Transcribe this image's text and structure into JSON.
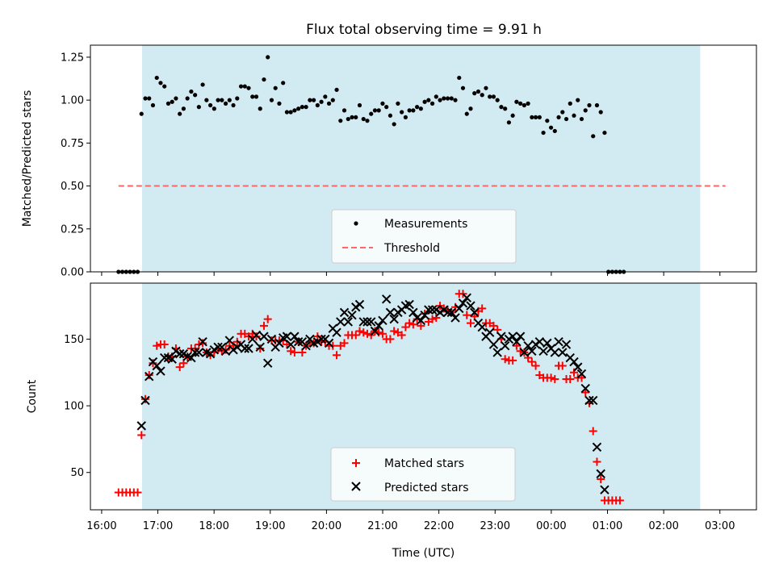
{
  "colors": {
    "observing_band": "#add8e6",
    "measurements": "#000000",
    "threshold": "#ff6666",
    "matched": "#ff0000",
    "predicted": "#000000"
  },
  "chart_data": [
    {
      "type": "scatter",
      "title": "Flux total observing time = 9.91 h",
      "xlabel": "",
      "ylabel": "Matched/Predicted stars",
      "ylim": [
        0,
        1.32
      ],
      "yticks": [
        0.0,
        0.25,
        0.5,
        0.75,
        1.0,
        1.25
      ],
      "ytick_labels": [
        "0.00",
        "0.25",
        "0.50",
        "0.75",
        "1.00",
        "1.25"
      ],
      "xlim_hours": [
        15.8,
        27.65
      ],
      "observing_window_hours": [
        16.72,
        26.65
      ],
      "threshold": {
        "value": 0.5,
        "x_start_hours": 16.3,
        "x_end_hours": 27.1
      },
      "legend": {
        "position": "lower-center",
        "entries": [
          "Measurements",
          "Threshold"
        ]
      },
      "series": [
        {
          "name": "Measurements",
          "x_start_hours": 16.3,
          "x_step_hours": 0.0681,
          "values": [
            0,
            0,
            0,
            0,
            0,
            0,
            0.92,
            1.01,
            1.01,
            0.97,
            1.13,
            1.1,
            1.08,
            0.98,
            0.99,
            1.01,
            0.92,
            0.95,
            1.01,
            1.05,
            1.03,
            0.96,
            1.09,
            1.0,
            0.97,
            0.95,
            1.0,
            1.0,
            0.98,
            1.0,
            0.97,
            1.01,
            1.08,
            1.08,
            1.07,
            1.02,
            1.02,
            0.95,
            1.12,
            1.25,
            1.0,
            1.07,
            0.98,
            1.1,
            0.93,
            0.93,
            0.94,
            0.95,
            0.96,
            0.96,
            1.0,
            1.0,
            0.97,
            0.99,
            1.02,
            0.98,
            1.0,
            1.06,
            0.88,
            0.94,
            0.89,
            0.9,
            0.9,
            0.97,
            0.89,
            0.88,
            0.92,
            0.94,
            0.94,
            0.98,
            0.96,
            0.91,
            0.86,
            0.98,
            0.93,
            0.9,
            0.94,
            0.94,
            0.96,
            0.95,
            0.99,
            1.0,
            0.98,
            1.02,
            1.0,
            1.01,
            1.01,
            1.01,
            1.0,
            1.13,
            1.07,
            0.92,
            0.95,
            1.04,
            1.05,
            1.03,
            1.07,
            1.02,
            1.02,
            1.0,
            0.96,
            0.95,
            0.87,
            0.91,
            0.99,
            0.98,
            0.97,
            0.98,
            0.9,
            0.9,
            0.9,
            0.81,
            0.88,
            0.84,
            0.82,
            0.9,
            0.93,
            0.89,
            0.98,
            0.91,
            1.0,
            0.89,
            0.94,
            0.97,
            0.79,
            0.97,
            0.93,
            0.81,
            0,
            0,
            0,
            0,
            0
          ]
        }
      ]
    },
    {
      "type": "scatter",
      "title": "",
      "xlabel": "Time (UTC)",
      "ylabel": "Count",
      "ylim": [
        22,
        192
      ],
      "yticks": [
        50,
        100,
        150
      ],
      "ytick_labels": [
        "50",
        "100",
        "150"
      ],
      "xticks_hours": [
        16,
        17,
        18,
        19,
        20,
        21,
        22,
        23,
        24,
        25,
        26,
        27
      ],
      "xtick_labels": [
        "16:00",
        "17:00",
        "18:00",
        "19:00",
        "20:00",
        "21:00",
        "22:00",
        "23:00",
        "00:00",
        "01:00",
        "02:00",
        "03:00"
      ],
      "xlim_hours": [
        15.8,
        27.65
      ],
      "observing_window_hours": [
        16.72,
        26.65
      ],
      "legend": {
        "position": "lower-center",
        "entries": [
          "Matched stars",
          "Predicted stars"
        ]
      },
      "series": [
        {
          "name": "Matched stars",
          "x_start_hours": 16.3,
          "x_step_hours": 0.0681,
          "values": [
            35,
            35,
            35,
            35,
            35,
            35,
            78,
            105,
            123,
            132,
            145,
            146,
            146,
            137,
            137,
            143,
            129,
            132,
            137,
            143,
            143,
            146,
            147,
            140,
            138,
            140,
            142,
            141,
            142,
            145,
            145,
            148,
            154,
            154,
            152,
            154,
            152,
            143,
            160,
            165,
            149,
            149,
            149,
            149,
            146,
            141,
            140,
            148,
            140,
            145,
            148,
            147,
            152,
            148,
            148,
            145,
            145,
            138,
            145,
            147,
            153,
            153,
            153,
            156,
            155,
            154,
            153,
            156,
            155,
            154,
            150,
            150,
            156,
            155,
            153,
            159,
            162,
            161,
            165,
            160,
            169,
            163,
            165,
            166,
            175,
            173,
            172,
            170,
            174,
            184,
            184,
            168,
            162,
            167,
            171,
            173,
            162,
            162,
            160,
            157,
            150,
            135,
            134,
            134,
            145,
            141,
            140,
            136,
            133,
            130,
            123,
            121,
            121,
            121,
            120,
            130,
            130,
            120,
            120,
            125,
            121,
            121,
            110,
            102,
            81,
            58,
            45,
            29,
            29,
            29,
            29,
            29
          ]
        },
        {
          "name": "Predicted stars",
          "x_start_hours": 16.3,
          "x_step_hours": 0.0681,
          "values": [
            null,
            null,
            null,
            null,
            null,
            null,
            85,
            104,
            122,
            133,
            130,
            126,
            136,
            136,
            135,
            141,
            139,
            139,
            137,
            136,
            140,
            140,
            148,
            140,
            139,
            142,
            144,
            144,
            141,
            149,
            142,
            144,
            146,
            143,
            143,
            150,
            153,
            144,
            152,
            132,
            150,
            144,
            147,
            151,
            152,
            146,
            152,
            148,
            148,
            145,
            150,
            147,
            148,
            150,
            150,
            147,
            158,
            155,
            163,
            170,
            163,
            168,
            174,
            176,
            163,
            163,
            163,
            156,
            160,
            164,
            180,
            170,
            165,
            170,
            172,
            175,
            176,
            170,
            166,
            164,
            168,
            172,
            172,
            172,
            170,
            172,
            170,
            170,
            166,
            173,
            177,
            181,
            175,
            170,
            162,
            159,
            152,
            155,
            146,
            140,
            152,
            145,
            150,
            152,
            148,
            152,
            140,
            145,
            141,
            146,
            148,
            141,
            147,
            143,
            140,
            148,
            140,
            146,
            136,
            133,
            129,
            124,
            113,
            104,
            104,
            69,
            49,
            37,
            null,
            null,
            null,
            null,
            null
          ]
        }
      ]
    }
  ]
}
